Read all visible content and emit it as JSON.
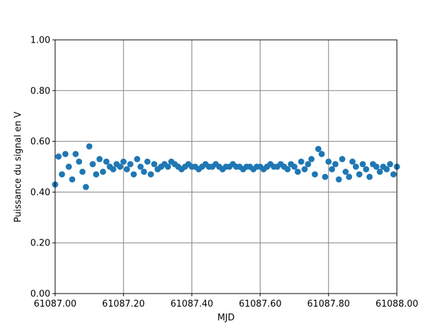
{
  "chart_data": {
    "type": "scatter",
    "xlabel": "MJD",
    "ylabel": "Puissance du signal en V",
    "color": "#1f77b4",
    "grid": true,
    "xlim": [
      61087.0,
      61088.0
    ],
    "ylim": [
      0,
      1
    ],
    "xticks": [
      {
        "value": 61087.0,
        "label": "61087.00"
      },
      {
        "value": 61087.2,
        "label": "61087.20"
      },
      {
        "value": 61087.4,
        "label": "61087.40"
      },
      {
        "value": 61087.6,
        "label": "61087.60"
      },
      {
        "value": 61087.8,
        "label": "61087.80"
      },
      {
        "value": 61088.0,
        "label": "61088.00"
      }
    ],
    "yticks": [
      {
        "value": 0,
        "label": "0.00"
      },
      {
        "value": 0.2,
        "label": "0.20"
      },
      {
        "value": 0.4,
        "label": "0.40"
      },
      {
        "value": 0.6,
        "label": "0.60"
      },
      {
        "value": 0.8,
        "label": "0.80"
      },
      {
        "value": 1,
        "label": "1.00"
      }
    ],
    "x": [
      61087.0,
      61087.01,
      61087.02,
      61087.03,
      61087.04,
      61087.05,
      61087.06,
      61087.07,
      61087.08,
      61087.09,
      61087.1,
      61087.11,
      61087.12,
      61087.13,
      61087.14,
      61087.15,
      61087.16,
      61087.17,
      61087.18,
      61087.19,
      61087.2,
      61087.21,
      61087.22,
      61087.23,
      61087.24,
      61087.25,
      61087.26,
      61087.27,
      61087.28,
      61087.29,
      61087.3,
      61087.31,
      61087.32,
      61087.33,
      61087.34,
      61087.35,
      61087.36,
      61087.37,
      61087.38,
      61087.39,
      61087.4,
      61087.41,
      61087.42,
      61087.43,
      61087.44,
      61087.45,
      61087.46,
      61087.47,
      61087.48,
      61087.49,
      61087.5,
      61087.51,
      61087.52,
      61087.53,
      61087.54,
      61087.55,
      61087.56,
      61087.57,
      61087.58,
      61087.59,
      61087.6,
      61087.61,
      61087.62,
      61087.63,
      61087.64,
      61087.65,
      61087.66,
      61087.67,
      61087.68,
      61087.69,
      61087.7,
      61087.71,
      61087.72,
      61087.73,
      61087.74,
      61087.75,
      61087.76,
      61087.77,
      61087.78,
      61087.79,
      61087.8,
      61087.81,
      61087.82,
      61087.83,
      61087.84,
      61087.85,
      61087.86,
      61087.87,
      61087.88,
      61087.89,
      61087.9,
      61087.91,
      61087.92,
      61087.93,
      61087.94,
      61087.95,
      61087.96,
      61087.97,
      61087.98,
      61087.99,
      61088.0
    ],
    "y": [
      0.43,
      0.54,
      0.47,
      0.55,
      0.5,
      0.45,
      0.55,
      0.52,
      0.48,
      0.42,
      0.58,
      0.51,
      0.47,
      0.53,
      0.48,
      0.52,
      0.5,
      0.49,
      0.51,
      0.5,
      0.52,
      0.49,
      0.51,
      0.47,
      0.53,
      0.5,
      0.48,
      0.52,
      0.47,
      0.51,
      0.49,
      0.5,
      0.51,
      0.5,
      0.52,
      0.51,
      0.5,
      0.49,
      0.5,
      0.51,
      0.5,
      0.5,
      0.49,
      0.5,
      0.51,
      0.5,
      0.5,
      0.51,
      0.5,
      0.49,
      0.5,
      0.5,
      0.51,
      0.5,
      0.5,
      0.49,
      0.5,
      0.5,
      0.49,
      0.5,
      0.5,
      0.49,
      0.5,
      0.51,
      0.5,
      0.5,
      0.51,
      0.5,
      0.49,
      0.51,
      0.5,
      0.48,
      0.52,
      0.49,
      0.51,
      0.53,
      0.47,
      0.57,
      0.55,
      0.46,
      0.52,
      0.49,
      0.51,
      0.45,
      0.53,
      0.48,
      0.46,
      0.52,
      0.5,
      0.47,
      0.51,
      0.49,
      0.46,
      0.51,
      0.5,
      0.48,
      0.5,
      0.49,
      0.51,
      0.47,
      0.5
    ]
  }
}
